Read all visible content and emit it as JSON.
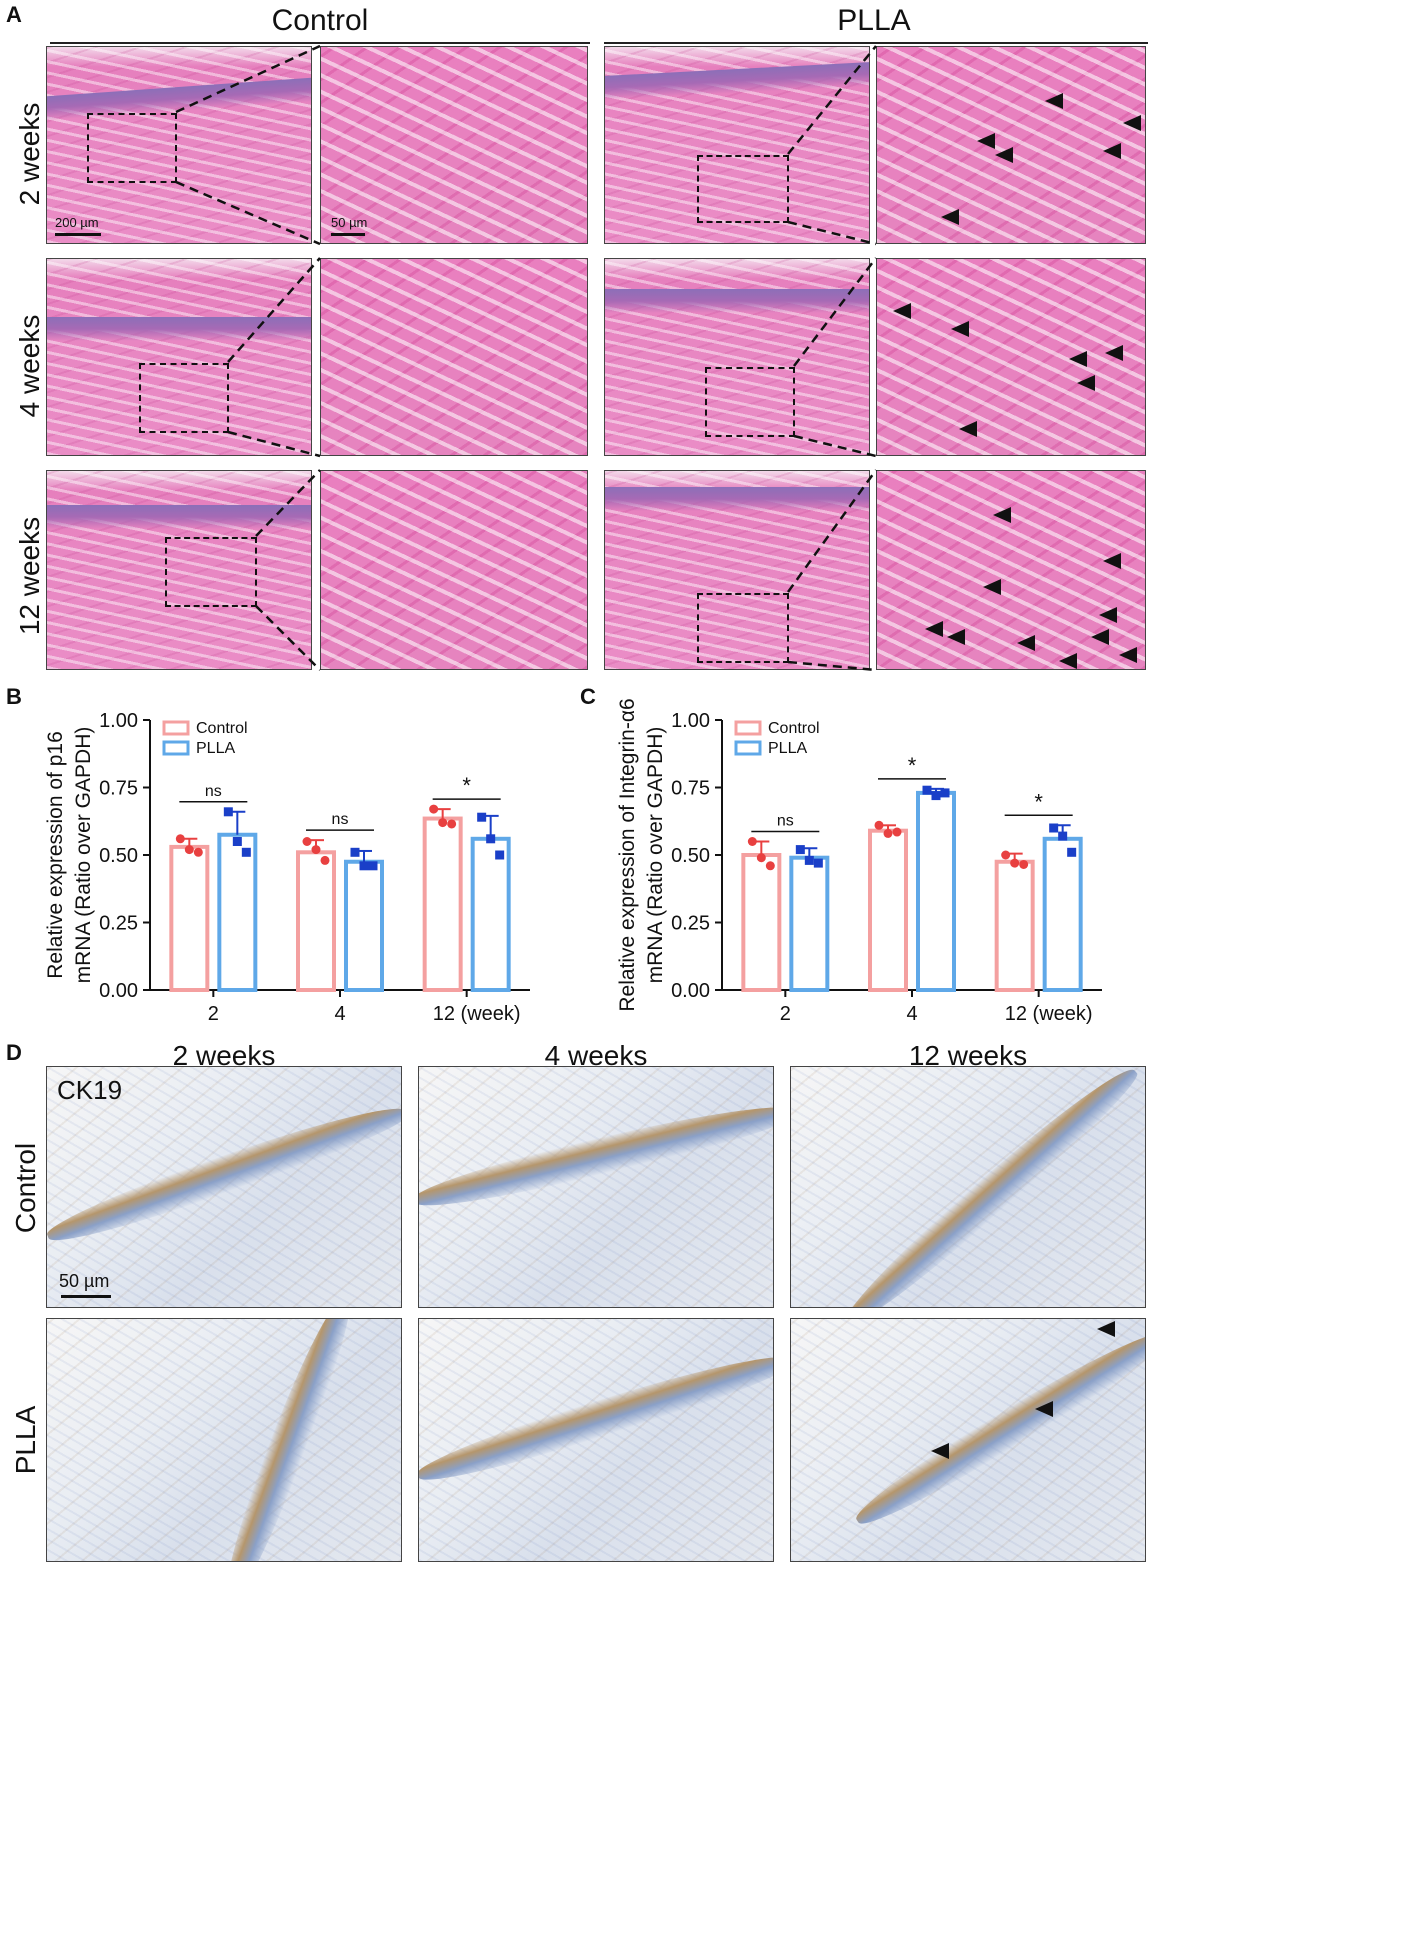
{
  "panel_a": {
    "letter": "A",
    "groups": [
      "Control",
      "PLLA"
    ],
    "rows": [
      "2 weeks",
      "4 weeks",
      "12 weeks"
    ],
    "scale_low": "200 µm",
    "scale_high": "50 µm"
  },
  "panel_b": {
    "letter": "B"
  },
  "panel_c": {
    "letter": "C"
  },
  "panel_d": {
    "letter": "D",
    "columns": [
      "2 weeks",
      "4 weeks",
      "12 weeks"
    ],
    "rows": [
      "Control",
      "PLLA"
    ],
    "stain": "CK19",
    "scale": "50 µm"
  },
  "chart_data": [
    {
      "type": "bar",
      "panel": "B",
      "categories": [
        "2",
        "4",
        "12 (week)"
      ],
      "ylabel": "Relative expression of p16 mRNA (Ratio over GAPDH)",
      "ylabel_lines": [
        "Relative expression of p16",
        "mRNA (Ratio over GAPDH)"
      ],
      "ylim": [
        0,
        1.0
      ],
      "yticks": [
        "0.00",
        "0.25",
        "0.50",
        "0.75",
        "1.00"
      ],
      "legend": [
        "Control",
        "PLLA"
      ],
      "legend_position": "top-left",
      "series": [
        {
          "name": "Control",
          "color": "#f4a0a0",
          "dot_color": "#e84040",
          "values": [
            0.53,
            0.51,
            0.635
          ],
          "errors": [
            0.03,
            0.045,
            0.035
          ],
          "points": [
            [
              0.56,
              0.52,
              0.51
            ],
            [
              0.55,
              0.52,
              0.48
            ],
            [
              0.67,
              0.62,
              0.615
            ]
          ]
        },
        {
          "name": "PLLA",
          "color": "#5fa8e8",
          "dot_color": "#1a3fc8",
          "values": [
            0.575,
            0.475,
            0.56
          ],
          "errors": [
            0.085,
            0.04,
            0.085
          ],
          "points": [
            [
              0.66,
              0.55,
              0.51
            ],
            [
              0.51,
              0.46,
              0.46
            ],
            [
              0.64,
              0.56,
              0.5
            ]
          ]
        }
      ],
      "significance": [
        {
          "category": "2",
          "label": "ns"
        },
        {
          "category": "4",
          "label": "ns"
        },
        {
          "category": "12 (week)",
          "label": "*"
        }
      ]
    },
    {
      "type": "bar",
      "panel": "C",
      "categories": [
        "2",
        "4",
        "12 (week)"
      ],
      "ylabel": "Relative expression of Integrin-α6 mRNA (Ratio over GAPDH)",
      "ylabel_lines": [
        "Relative expression of Integrin-α6",
        "mRNA (Ratio over GAPDH)"
      ],
      "ylim": [
        0,
        1.0
      ],
      "yticks": [
        "0.00",
        "0.25",
        "0.50",
        "0.75",
        "1.00"
      ],
      "legend": [
        "Control",
        "PLLA"
      ],
      "legend_position": "top-left",
      "series": [
        {
          "name": "Control",
          "color": "#f4a0a0",
          "dot_color": "#e84040",
          "values": [
            0.5,
            0.59,
            0.475
          ],
          "errors": [
            0.05,
            0.02,
            0.03
          ],
          "points": [
            [
              0.55,
              0.49,
              0.46
            ],
            [
              0.61,
              0.58,
              0.585
            ],
            [
              0.5,
              0.47,
              0.465
            ]
          ]
        },
        {
          "name": "PLLA",
          "color": "#5fa8e8",
          "dot_color": "#1a3fc8",
          "values": [
            0.49,
            0.73,
            0.56
          ],
          "errors": [
            0.035,
            0.015,
            0.05
          ],
          "points": [
            [
              0.52,
              0.48,
              0.47
            ],
            [
              0.74,
              0.72,
              0.73
            ],
            [
              0.6,
              0.57,
              0.51
            ]
          ]
        }
      ],
      "significance": [
        {
          "category": "2",
          "label": "ns"
        },
        {
          "category": "4",
          "label": "*"
        },
        {
          "category": "12 (week)",
          "label": "*"
        }
      ]
    }
  ]
}
